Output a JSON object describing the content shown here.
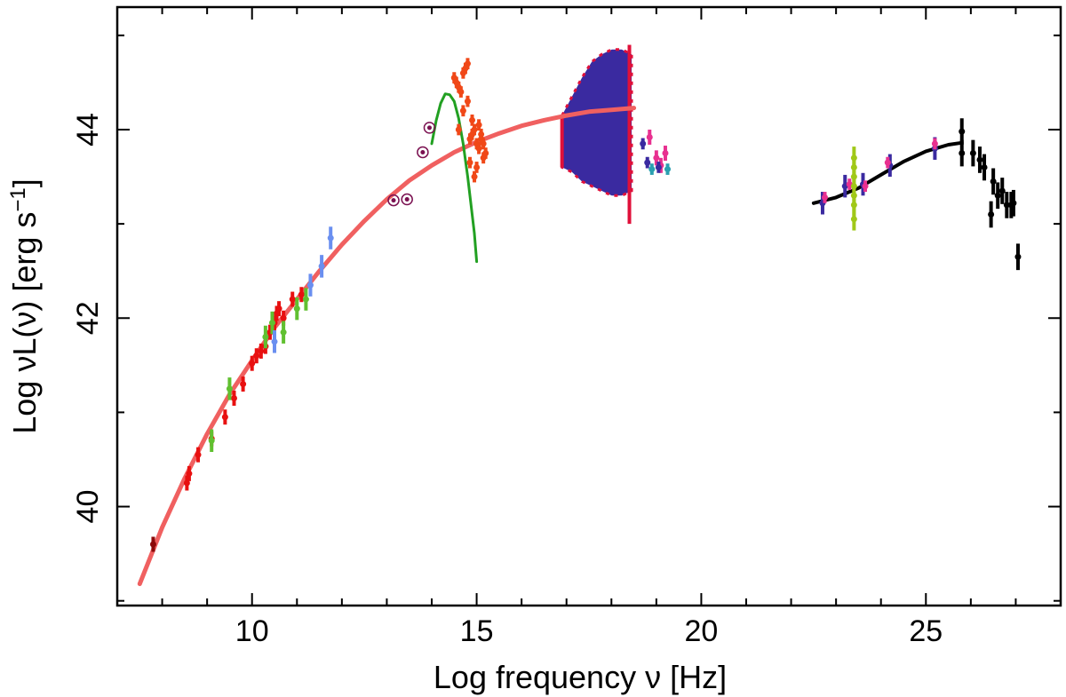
{
  "chart_data": {
    "type": "scatter",
    "xlabel": "Log frequency ν [Hz]",
    "ylabel_main": "Log νL(ν) [erg s",
    "ylabel_sup": "−1",
    "ylabel_close": "]",
    "xlim": [
      7,
      28
    ],
    "ylim": [
      38.95,
      45.3
    ],
    "xticks": [
      10,
      15,
      20,
      25
    ],
    "xtick_labels": [
      "10",
      "15",
      "20",
      "25"
    ],
    "yticks": [
      40,
      42,
      44
    ],
    "ytick_labels": [
      "40",
      "42",
      "44"
    ],
    "x_minor_step": 1,
    "y_minor_step": 1,
    "grid": false,
    "legend": "none",
    "colors": {
      "sync_fit": "#f06060",
      "host_galaxy": "#22a022",
      "ic_fit": "#000000",
      "xray_band": "#3a2aa0",
      "xray_edge": "#e0103a"
    },
    "series": [
      {
        "id": "sync_fit",
        "kind": "line",
        "color": "#f06060",
        "width": 5,
        "x": [
          7.5,
          8,
          8.5,
          9,
          9.5,
          10,
          10.5,
          11,
          11.5,
          12,
          12.5,
          13,
          13.5,
          14,
          14.5,
          15,
          15.5,
          16,
          16.5,
          17,
          17.5,
          18,
          18.5
        ],
        "y": [
          39.18,
          39.78,
          40.3,
          40.77,
          41.19,
          41.55,
          41.9,
          42.2,
          42.5,
          42.78,
          43.03,
          43.26,
          43.46,
          43.62,
          43.76,
          43.87,
          43.96,
          44.04,
          44.1,
          44.15,
          44.19,
          44.21,
          44.23
        ]
      },
      {
        "id": "host_galaxy",
        "kind": "line",
        "color": "#22a022",
        "width": 3,
        "x": [
          14.0,
          14.1,
          14.2,
          14.3,
          14.4,
          14.5,
          14.6,
          14.7,
          14.8,
          14.85,
          14.9,
          14.95,
          15.0
        ],
        "y": [
          43.85,
          44.1,
          44.28,
          44.38,
          44.37,
          44.3,
          44.12,
          43.85,
          43.5,
          43.3,
          43.1,
          42.9,
          42.6
        ]
      },
      {
        "id": "ic_fit",
        "kind": "line",
        "color": "#000000",
        "width": 4,
        "x": [
          22.5,
          23,
          23.5,
          24,
          24.5,
          25,
          25.5,
          25.8
        ],
        "y": [
          43.22,
          43.28,
          43.38,
          43.52,
          43.66,
          43.77,
          43.84,
          43.86
        ]
      },
      {
        "id": "radio_dark",
        "kind": "points",
        "color": "#8b0a0a",
        "err": 0.08,
        "x": [
          7.8
        ],
        "y": [
          39.6
        ]
      },
      {
        "id": "radio_red",
        "kind": "points",
        "color": "#e81010",
        "err": 0.08,
        "x": [
          8.55,
          8.6,
          8.8,
          9.1,
          9.4,
          9.6,
          9.8,
          10.0,
          10.1,
          10.2,
          10.3,
          10.4,
          10.5,
          10.55,
          10.6,
          10.7,
          10.9,
          11.1
        ],
        "y": [
          40.25,
          40.35,
          40.55,
          40.72,
          40.95,
          41.15,
          41.3,
          41.52,
          41.6,
          41.65,
          41.7,
          41.85,
          41.95,
          42.05,
          42.1,
          42.0,
          42.2,
          42.25
        ]
      },
      {
        "id": "radio_green",
        "kind": "points",
        "color": "#60c030",
        "err": 0.12,
        "x": [
          9.1,
          9.5,
          10.3,
          10.45,
          10.7,
          11.0,
          11.2
        ],
        "y": [
          40.7,
          41.25,
          41.8,
          41.95,
          41.85,
          42.1,
          42.2
        ]
      },
      {
        "id": "mm_blue",
        "kind": "points",
        "color": "#6a8ff0",
        "err": 0.12,
        "x": [
          10.5,
          11.3,
          11.55,
          11.75
        ],
        "y": [
          41.75,
          42.35,
          42.55,
          42.85
        ]
      },
      {
        "id": "ir_circled",
        "kind": "circled",
        "color": "#7a1050",
        "x": [
          13.15,
          13.45,
          13.8,
          13.95
        ],
        "y": [
          43.25,
          43.26,
          43.76,
          44.02
        ]
      },
      {
        "id": "optical",
        "kind": "points",
        "color": "#f04818",
        "err": 0.06,
        "x": [
          14.5,
          14.55,
          14.6,
          14.65,
          14.7,
          14.75,
          14.8,
          14.85,
          14.9,
          14.95,
          15.0,
          15.05,
          15.1,
          15.15,
          15.2,
          14.6,
          14.7,
          14.8,
          14.9,
          15.0,
          15.1,
          14.95,
          15.05,
          14.85,
          15.15
        ],
        "y": [
          44.55,
          44.5,
          44.45,
          44.4,
          44.6,
          44.65,
          44.7,
          43.9,
          43.95,
          44.0,
          43.85,
          43.8,
          43.9,
          43.7,
          43.75,
          44.0,
          44.2,
          44.3,
          44.1,
          43.6,
          43.95,
          43.5,
          44.05,
          43.65,
          43.85
        ]
      },
      {
        "id": "hard_x_pink",
        "kind": "points",
        "color": "#e83090",
        "err": 0.08,
        "x": [
          18.85,
          19.0,
          19.1,
          19.2
        ],
        "y": [
          43.92,
          43.7,
          43.62,
          43.75
        ]
      },
      {
        "id": "hard_x_purple",
        "kind": "points",
        "color": "#3a2aa0",
        "err": 0.06,
        "x": [
          18.7,
          18.8,
          19.05
        ],
        "y": [
          43.85,
          43.65,
          43.6
        ]
      },
      {
        "id": "hard_x_teal",
        "kind": "points",
        "color": "#2aa0b0",
        "err": 0.06,
        "x": [
          18.9,
          19.25
        ],
        "y": [
          43.58,
          43.58
        ]
      },
      {
        "id": "gamma_purple",
        "kind": "points",
        "color": "#3a2aa0",
        "err": 0.12,
        "x": [
          22.7,
          23.2,
          23.6,
          24.2,
          25.2
        ],
        "y": [
          43.22,
          43.4,
          43.42,
          43.62,
          43.8
        ]
      },
      {
        "id": "gamma_pink",
        "kind": "points",
        "color": "#e83090",
        "err": 0.06,
        "x": [
          22.75,
          23.3,
          23.65,
          24.15,
          25.2
        ],
        "y": [
          43.28,
          43.42,
          43.4,
          43.65,
          43.85
        ]
      },
      {
        "id": "gamma_lime",
        "kind": "points",
        "color": "#a0c818",
        "err": 0.12,
        "x": [
          23.4,
          23.4,
          23.4,
          23.4,
          23.4,
          23.4,
          23.4
        ],
        "y": [
          43.05,
          43.2,
          43.3,
          43.4,
          43.5,
          43.6,
          43.7
        ]
      },
      {
        "id": "vhe_black",
        "kind": "points",
        "color": "#000000",
        "err": 0.14,
        "x": [
          25.8,
          25.8,
          26.05,
          26.2,
          26.3,
          26.45,
          26.5,
          26.6,
          26.7,
          26.8,
          26.9,
          26.95,
          27.05
        ],
        "y": [
          43.98,
          43.75,
          43.75,
          43.68,
          43.6,
          43.1,
          43.45,
          43.3,
          43.35,
          43.2,
          43.2,
          43.22,
          42.65
        ]
      }
    ],
    "xray_band": {
      "color": "#3a2aa0",
      "edge_color": "#e0103a",
      "x_start": 16.9,
      "x_end": 18.45,
      "y_bottom": [
        43.6,
        43.55,
        43.45,
        43.4,
        43.35,
        43.3,
        43.3,
        43.35
      ],
      "y_top": [
        44.15,
        44.35,
        44.55,
        44.72,
        44.8,
        44.85,
        44.85,
        44.8
      ],
      "spike_x": 18.4,
      "spike_bottom": 43.0,
      "spike_top": 44.9
    }
  }
}
